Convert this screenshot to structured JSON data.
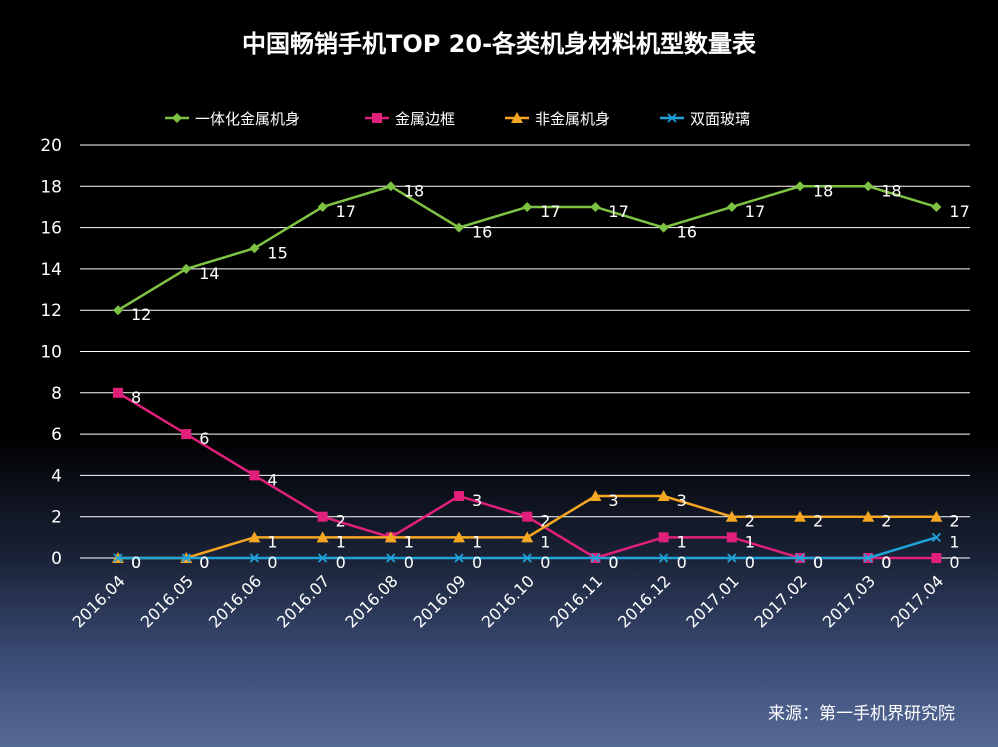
{
  "chart_data": {
    "type": "line",
    "title": "中国畅销手机TOP 20-各类机身材料机型数量表",
    "categories": [
      "2016.04",
      "2016.05",
      "2016.06",
      "2016.07",
      "2016.08",
      "2016.09",
      "2016.10",
      "2016.11",
      "2016.12",
      "2017.01",
      "2017.02",
      "2017.03",
      "2017.04"
    ],
    "ylim": [
      0,
      20
    ],
    "yticks": [
      0,
      2,
      4,
      6,
      8,
      10,
      12,
      14,
      16,
      18,
      20
    ],
    "grid": true,
    "legend_position": "top",
    "xlabel": "",
    "ylabel": "",
    "series": [
      {
        "name": "一体化金属机身",
        "color": "#7dc242",
        "marker": "diamond",
        "values": [
          12,
          14,
          15,
          17,
          18,
          16,
          17,
          17,
          16,
          17,
          18,
          18,
          17
        ]
      },
      {
        "name": "金属边框",
        "color": "#e0207a",
        "marker": "square",
        "values": [
          8,
          6,
          4,
          2,
          1,
          3,
          2,
          0,
          1,
          1,
          0,
          0,
          0
        ]
      },
      {
        "name": "非金属机身",
        "color": "#f5a623",
        "marker": "triangle",
        "values": [
          0,
          0,
          1,
          1,
          1,
          1,
          1,
          3,
          3,
          2,
          2,
          2,
          2
        ]
      },
      {
        "name": "双面玻璃",
        "color": "#1fa3d8",
        "marker": "x",
        "values": [
          0,
          0,
          0,
          0,
          0,
          0,
          0,
          0,
          0,
          0,
          0,
          0,
          1
        ]
      }
    ],
    "source": "来源：第一手机界研究院"
  }
}
